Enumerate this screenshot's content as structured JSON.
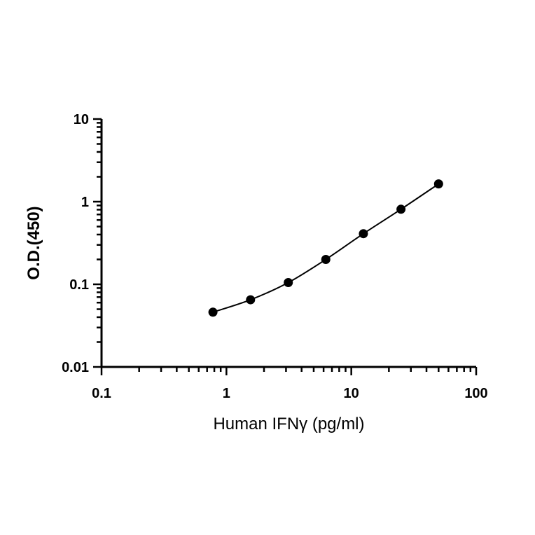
{
  "chart_data": {
    "type": "scatter",
    "title": "",
    "xlabel": "Human IFNγ (pg/ml)",
    "ylabel": "O.D.(450)",
    "x_scale": "log",
    "y_scale": "log",
    "xlim": [
      0.1,
      100
    ],
    "ylim": [
      0.01,
      10
    ],
    "x_ticks": [
      {
        "value": 0.1,
        "label": "0.1"
      },
      {
        "value": 1,
        "label": "1"
      },
      {
        "value": 10,
        "label": "10"
      },
      {
        "value": 100,
        "label": "100"
      }
    ],
    "y_ticks": [
      {
        "value": 0.01,
        "label": "0.01"
      },
      {
        "value": 0.1,
        "label": "0.1"
      },
      {
        "value": 1,
        "label": "1"
      },
      {
        "value": 10,
        "label": "10"
      }
    ],
    "grid": false,
    "legend": "none",
    "series": [
      {
        "color": "#000000",
        "x": [
          0.78,
          1.56,
          3.13,
          6.25,
          12.5,
          25,
          50
        ],
        "y": [
          0.046,
          0.065,
          0.105,
          0.2,
          0.41,
          0.81,
          1.64
        ],
        "fit_curve": true
      }
    ]
  }
}
